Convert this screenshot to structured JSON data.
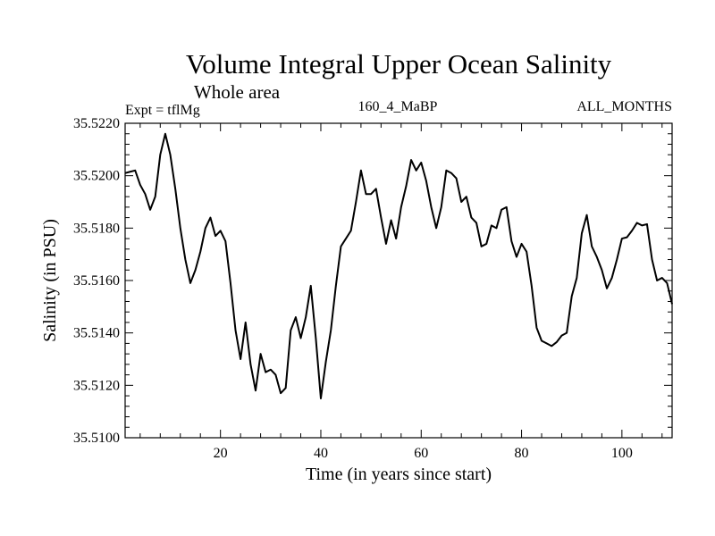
{
  "chart_data": {
    "type": "line",
    "title": "Volume Integral Upper Ocean Salinity",
    "subtitle": "Whole area",
    "experiment_label": "Expt = tflMg",
    "center_label": "160_4_MaBP",
    "right_label": "ALL_MONTHS",
    "xlabel": "Time (in years since start)",
    "ylabel": "Salinity (in PSU)",
    "xlim": [
      1,
      110
    ],
    "ylim": [
      35.51,
      35.522
    ],
    "x_ticks": [
      20,
      40,
      60,
      80,
      100
    ],
    "y_ticks": [
      "35.5100",
      "35.5120",
      "35.5140",
      "35.5160",
      "35.5180",
      "35.5200",
      "35.5220"
    ],
    "series": [
      {
        "name": "Salinity",
        "x": [
          1,
          2,
          3,
          4,
          5,
          6,
          7,
          8,
          9,
          10,
          11,
          12,
          13,
          14,
          15,
          16,
          17,
          18,
          19,
          20,
          21,
          22,
          23,
          24,
          25,
          26,
          27,
          28,
          29,
          30,
          31,
          32,
          33,
          34,
          35,
          36,
          37,
          38,
          39,
          40,
          41,
          42,
          43,
          44,
          45,
          46,
          47,
          48,
          49,
          50,
          51,
          52,
          53,
          54,
          55,
          56,
          57,
          58,
          59,
          60,
          61,
          62,
          63,
          64,
          65,
          66,
          67,
          68,
          69,
          70,
          71,
          72,
          73,
          74,
          75,
          76,
          77,
          78,
          79,
          80,
          81,
          82,
          83,
          84,
          85,
          86,
          87,
          88,
          89,
          90,
          91,
          92,
          93,
          94,
          95,
          96,
          97,
          98,
          99,
          100,
          101,
          102,
          103,
          104,
          105,
          106,
          107,
          108,
          109,
          110
        ],
        "values": [
          35.5201,
          35.52015,
          35.5202,
          35.51965,
          35.5193,
          35.5187,
          35.5192,
          35.5208,
          35.5216,
          35.5208,
          35.5195,
          35.518,
          35.5168,
          35.5159,
          35.5164,
          35.5171,
          35.518,
          35.5184,
          35.5177,
          35.5179,
          35.5175,
          35.5159,
          35.5141,
          35.513,
          35.5144,
          35.5128,
          35.5118,
          35.5132,
          35.5125,
          35.5126,
          35.5124,
          35.5117,
          35.5119,
          35.5141,
          35.5146,
          35.5138,
          35.5146,
          35.5158,
          35.5138,
          35.5115,
          35.5129,
          35.5141,
          35.5158,
          35.5173,
          35.5176,
          35.5179,
          35.519,
          35.5202,
          35.5193,
          35.5193,
          35.5195,
          35.5184,
          35.5174,
          35.5183,
          35.5176,
          35.5188,
          35.5196,
          35.5206,
          35.5202,
          35.5205,
          35.5198,
          35.5188,
          35.518,
          35.5188,
          35.5202,
          35.5201,
          35.5199,
          35.519,
          35.5192,
          35.5184,
          35.5182,
          35.5173,
          35.5174,
          35.5181,
          35.518,
          35.5187,
          35.5188,
          35.5175,
          35.5169,
          35.5174,
          35.5171,
          35.5158,
          35.5142,
          35.5137,
          35.5136,
          35.5135,
          35.51365,
          35.5139,
          35.514,
          35.5154,
          35.5161,
          35.5178,
          35.5185,
          35.5173,
          35.5169,
          35.5164,
          35.5157,
          35.5161,
          35.5168,
          35.5176,
          35.51765,
          35.5179,
          35.5182,
          35.5181,
          35.51815,
          35.5168,
          35.516,
          35.5161,
          35.5159,
          35.5151
        ]
      }
    ]
  }
}
